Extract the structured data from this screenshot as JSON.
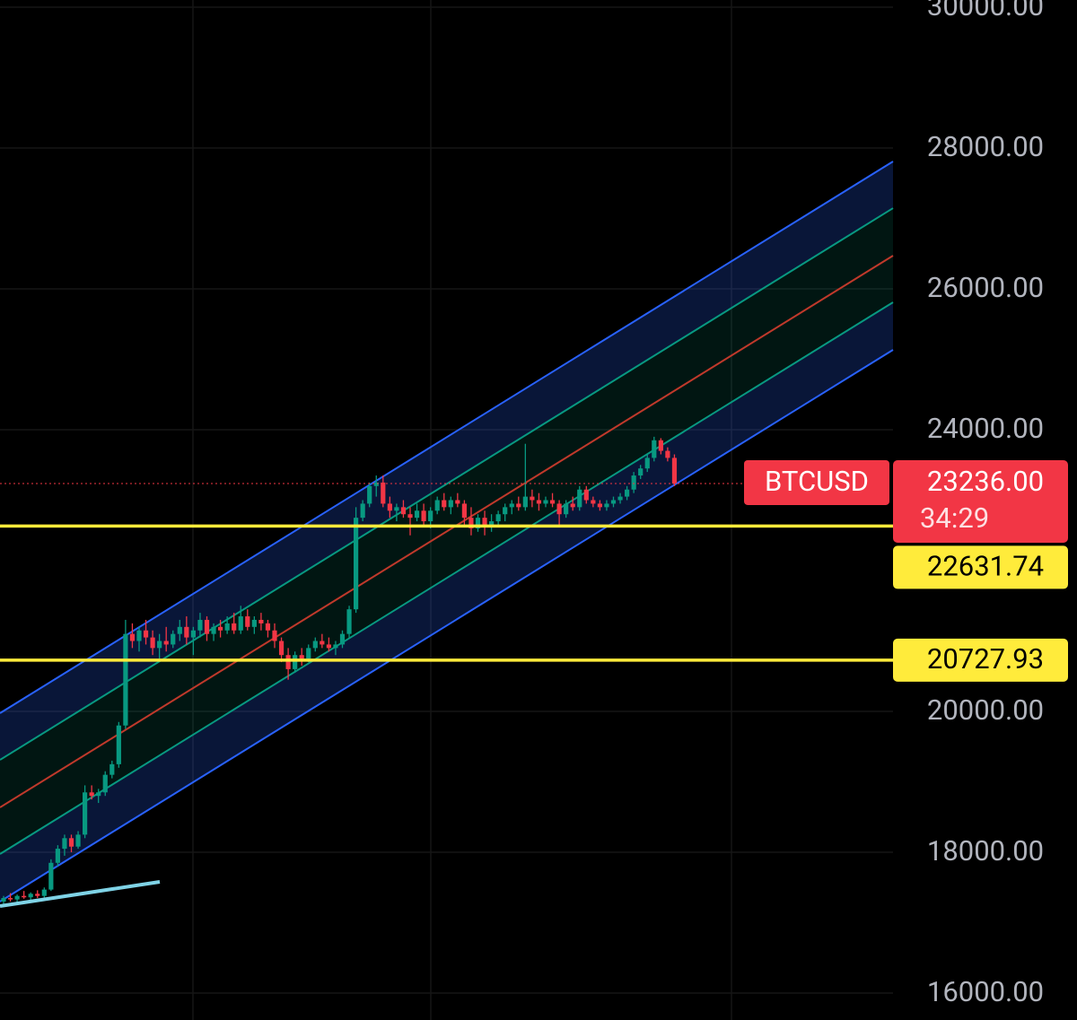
{
  "chart_data": {
    "type": "candlestick",
    "symbol": "BTCUSD",
    "last_price": {
      "value": 23236,
      "label": "23236.00"
    },
    "countdown": "34:29",
    "ylim": [
      15618,
      30102
    ],
    "yticks": [
      {
        "value": 16000,
        "label": "16000.00"
      },
      {
        "value": 18000,
        "label": "18000.00"
      },
      {
        "value": 20000,
        "label": "20000.00"
      },
      {
        "value": 24000,
        "label": "24000.00"
      },
      {
        "value": 26000,
        "label": "26000.00"
      },
      {
        "value": 28000,
        "label": "28000.00"
      },
      {
        "value": 30000,
        "label": "30000.00"
      }
    ],
    "grid": true,
    "up_color": "#089981",
    "down_color": "#f23645",
    "levels": [
      {
        "value": 22631.74,
        "color": "#ffeb3b"
      },
      {
        "value": 20727.93,
        "color": "#ffeb3b"
      }
    ],
    "channel": {
      "upper": [
        19975,
        27809
      ],
      "upper_inner": [
        19312,
        27146
      ],
      "middle": [
        18637,
        26471
      ],
      "lower_inner": [
        17975,
        25809
      ],
      "lower": [
        17300,
        25134
      ]
    },
    "trendline": [
      17236,
      17580
    ],
    "candles": [
      [
        17300,
        17380,
        17250,
        17350
      ],
      [
        17350,
        17420,
        17300,
        17330
      ],
      [
        17330,
        17400,
        17280,
        17380
      ],
      [
        17380,
        17450,
        17340,
        17360
      ],
      [
        17360,
        17430,
        17300,
        17410
      ],
      [
        17410,
        17460,
        17350,
        17380
      ],
      [
        17380,
        17500,
        17350,
        17470
      ],
      [
        17470,
        17900,
        17450,
        17850
      ],
      [
        17850,
        18100,
        17800,
        18050
      ],
      [
        18050,
        18250,
        17950,
        18200
      ],
      [
        18200,
        18250,
        18000,
        18080
      ],
      [
        18080,
        18300,
        18050,
        18250
      ],
      [
        18250,
        18950,
        18200,
        18850
      ],
      [
        18850,
        18950,
        18750,
        18800
      ],
      [
        18800,
        18900,
        18700,
        18850
      ],
      [
        18850,
        19150,
        18800,
        19100
      ],
      [
        19100,
        19300,
        19050,
        19250
      ],
      [
        19250,
        19850,
        19200,
        19800
      ],
      [
        19800,
        21300,
        19750,
        21100
      ],
      [
        21100,
        21250,
        20900,
        21000
      ],
      [
        21000,
        21200,
        20850,
        21150
      ],
      [
        21150,
        21300,
        20950,
        21050
      ],
      [
        21050,
        21150,
        20800,
        20900
      ],
      [
        20900,
        21100,
        20750,
        21000
      ],
      [
        21000,
        21200,
        20850,
        20950
      ],
      [
        20950,
        21150,
        20900,
        21100
      ],
      [
        21100,
        21300,
        21000,
        21200
      ],
      [
        21200,
        21350,
        20950,
        21050
      ],
      [
        21050,
        21200,
        20800,
        21150
      ],
      [
        21150,
        21400,
        21050,
        21300
      ],
      [
        21300,
        21350,
        21000,
        21100
      ],
      [
        21100,
        21250,
        21000,
        21200
      ],
      [
        21200,
        21300,
        21050,
        21150
      ],
      [
        21150,
        21350,
        21100,
        21250
      ],
      [
        21250,
        21400,
        21100,
        21150
      ],
      [
        21150,
        21500,
        21100,
        21350
      ],
      [
        21350,
        21450,
        21150,
        21200
      ],
      [
        21200,
        21350,
        21100,
        21300
      ],
      [
        21300,
        21400,
        21150,
        21250
      ],
      [
        21250,
        21300,
        21050,
        21150
      ],
      [
        21150,
        21250,
        20900,
        21000
      ],
      [
        21000,
        21050,
        20700,
        20800
      ],
      [
        20800,
        20900,
        20450,
        20600
      ],
      [
        20600,
        20850,
        20550,
        20800
      ],
      [
        20800,
        20900,
        20650,
        20750
      ],
      [
        20750,
        20950,
        20700,
        20900
      ],
      [
        20900,
        21050,
        20850,
        21000
      ],
      [
        21000,
        21100,
        20900,
        20950
      ],
      [
        20950,
        21050,
        20850,
        20900
      ],
      [
        20900,
        21000,
        20800,
        20950
      ],
      [
        20950,
        21150,
        20900,
        21100
      ],
      [
        21100,
        21500,
        21050,
        21450
      ],
      [
        21450,
        22900,
        21400,
        22750
      ],
      [
        22750,
        23000,
        22700,
        22950
      ],
      [
        22950,
        23250,
        22900,
        23200
      ],
      [
        23200,
        23350,
        23050,
        23250
      ],
      [
        23250,
        23350,
        22900,
        22950
      ],
      [
        22950,
        23050,
        22750,
        22850
      ],
      [
        22850,
        22950,
        22700,
        22900
      ],
      [
        22900,
        23000,
        22750,
        22800
      ],
      [
        22800,
        22900,
        22500,
        22750
      ],
      [
        22750,
        22950,
        22700,
        22850
      ],
      [
        22850,
        22950,
        22650,
        22700
      ],
      [
        22700,
        22900,
        22600,
        22850
      ],
      [
        22850,
        23050,
        22800,
        23000
      ],
      [
        23000,
        23100,
        22850,
        22900
      ],
      [
        22900,
        23050,
        22800,
        23000
      ],
      [
        23000,
        23100,
        22900,
        22950
      ],
      [
        22950,
        23000,
        22650,
        22750
      ],
      [
        22750,
        22900,
        22500,
        22600
      ],
      [
        22600,
        22800,
        22550,
        22750
      ],
      [
        22750,
        22850,
        22500,
        22650
      ],
      [
        22650,
        22800,
        22550,
        22700
      ],
      [
        22700,
        22850,
        22650,
        22800
      ],
      [
        22800,
        22950,
        22700,
        22900
      ],
      [
        22900,
        23000,
        22800,
        22950
      ],
      [
        22950,
        23050,
        22850,
        22900
      ],
      [
        22900,
        23800,
        22850,
        23050
      ],
      [
        23050,
        23150,
        22900,
        23000
      ],
      [
        23000,
        23100,
        22850,
        22950
      ],
      [
        22950,
        23050,
        22900,
        23000
      ],
      [
        23000,
        23100,
        22900,
        22950
      ],
      [
        22950,
        23000,
        22650,
        22800
      ],
      [
        22800,
        23000,
        22750,
        22950
      ],
      [
        22950,
        23050,
        22850,
        22900
      ],
      [
        22900,
        23200,
        22850,
        23150
      ],
      [
        23150,
        23200,
        22950,
        23000
      ],
      [
        23000,
        23050,
        22900,
        22950
      ],
      [
        22950,
        23000,
        22850,
        22900
      ],
      [
        22900,
        23000,
        22850,
        22950
      ],
      [
        22950,
        23050,
        22900,
        23000
      ],
      [
        23000,
        23100,
        22950,
        23050
      ],
      [
        23050,
        23200,
        23000,
        23150
      ],
      [
        23150,
        23400,
        23100,
        23350
      ],
      [
        23350,
        23500,
        23300,
        23450
      ],
      [
        23450,
        23650,
        23400,
        23600
      ],
      [
        23600,
        23900,
        23550,
        23850
      ],
      [
        23850,
        23880,
        23650,
        23700
      ],
      [
        23700,
        23750,
        23550,
        23600
      ],
      [
        23600,
        23650,
        23200,
        23236
      ]
    ]
  }
}
